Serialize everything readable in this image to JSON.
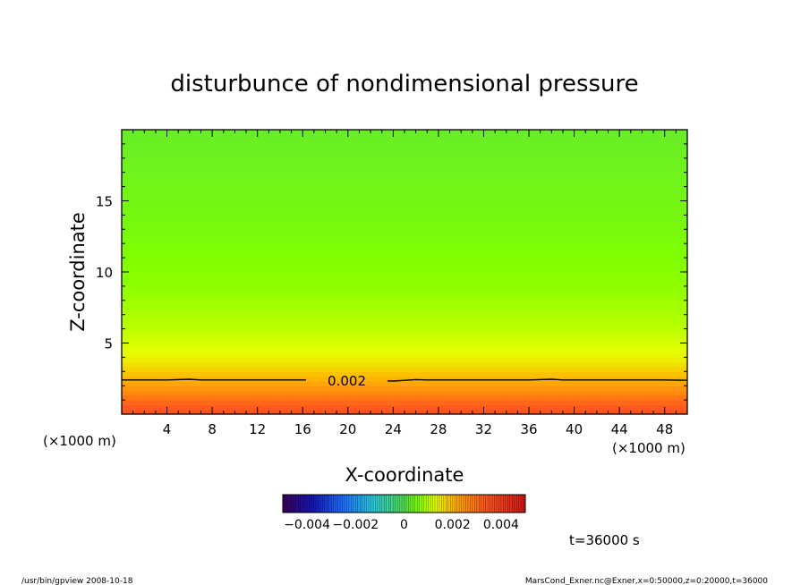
{
  "chart_data": {
    "type": "heatmap",
    "title": "disturbunce of nondimensional pressure",
    "xlabel": "X-coordinate",
    "ylabel": "Z-coordinate",
    "x_unit_left": "(×1000 m)",
    "x_unit_right": "(×1000 m)",
    "xlim": [
      0,
      50
    ],
    "ylim": [
      0,
      20
    ],
    "x_ticks": [
      4,
      8,
      12,
      16,
      20,
      24,
      28,
      32,
      36,
      40,
      44,
      48
    ],
    "y_ticks": [
      5,
      10,
      15
    ],
    "z_profile": [
      {
        "z": 0.0,
        "value": 0.0036
      },
      {
        "z": 1.0,
        "value": 0.003
      },
      {
        "z": 2.5,
        "value": 0.002
      },
      {
        "z": 4.0,
        "value": 0.0014
      },
      {
        "z": 6.0,
        "value": 0.001
      },
      {
        "z": 9.0,
        "value": 0.0007
      },
      {
        "z": 13.0,
        "value": 0.0005
      },
      {
        "z": 17.0,
        "value": 0.0004
      },
      {
        "z": 20.0,
        "value": 0.0003
      }
    ],
    "contour": {
      "level_label": "0.002",
      "points": [
        [
          0,
          2.4
        ],
        [
          4,
          2.4
        ],
        [
          6,
          2.45
        ],
        [
          7,
          2.4
        ],
        [
          12,
          2.4
        ],
        [
          16,
          2.4
        ],
        [
          20,
          2.4
        ],
        [
          23,
          2.35
        ],
        [
          24,
          2.33
        ],
        [
          26,
          2.43
        ],
        [
          27,
          2.4
        ],
        [
          30,
          2.4
        ],
        [
          36,
          2.4
        ],
        [
          38,
          2.45
        ],
        [
          39,
          2.4
        ],
        [
          44,
          2.4
        ],
        [
          48,
          2.4
        ],
        [
          50,
          2.38
        ]
      ]
    },
    "colorbar": {
      "range": [
        -0.005,
        0.005
      ],
      "tick_values": [
        -0.004,
        -0.002,
        0,
        0.002,
        0.004
      ],
      "tick_labels": [
        "−0.004",
        "−0.002",
        "0",
        "0.002",
        "0.004"
      ]
    },
    "time_label": "t=36000 s",
    "footer_left": "/usr/bin/gpview   2008-10-18",
    "footer_right": "MarsCond_Exner.nc@Exner,x=0:50000,z=0:20000,t=36000"
  }
}
